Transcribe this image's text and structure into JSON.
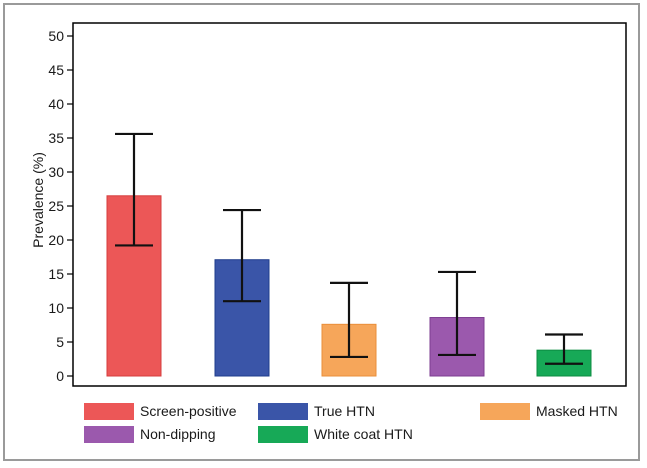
{
  "chart_data": {
    "type": "bar",
    "title": "",
    "xlabel": "",
    "ylabel": "Prevalence (%)",
    "ylim": [
      0,
      50
    ],
    "yticks": [
      0,
      5,
      10,
      15,
      20,
      25,
      30,
      35,
      40,
      45,
      50
    ],
    "grid": false,
    "legend_position": "bottom",
    "categories": [
      "Screen-positive",
      "True HTN",
      "Masked HTN",
      "Non-dipping",
      "White coat HTN"
    ],
    "values": [
      26.5,
      17.1,
      7.6,
      8.6,
      3.8
    ],
    "error_low": [
      19.2,
      11.0,
      2.8,
      3.1,
      1.8
    ],
    "error_high": [
      35.6,
      24.4,
      13.7,
      15.3,
      6.1
    ],
    "colors": [
      "#ec5757",
      "#3a55a8",
      "#f6a65a",
      "#9b59ad",
      "#17a957"
    ],
    "edge_colors": [
      "#d63c3c",
      "#1f3d8c",
      "#e98f3a",
      "#7d3d91",
      "#0c8c42"
    ],
    "legend": [
      {
        "label": "Screen-positive",
        "color": "#ec5757"
      },
      {
        "label": "True HTN",
        "color": "#3a55a8"
      },
      {
        "label": "Masked HTN",
        "color": "#f6a65a"
      },
      {
        "label": "Non-dipping",
        "color": "#9b59ad"
      },
      {
        "label": "White coat HTN",
        "color": "#17a957"
      }
    ]
  }
}
